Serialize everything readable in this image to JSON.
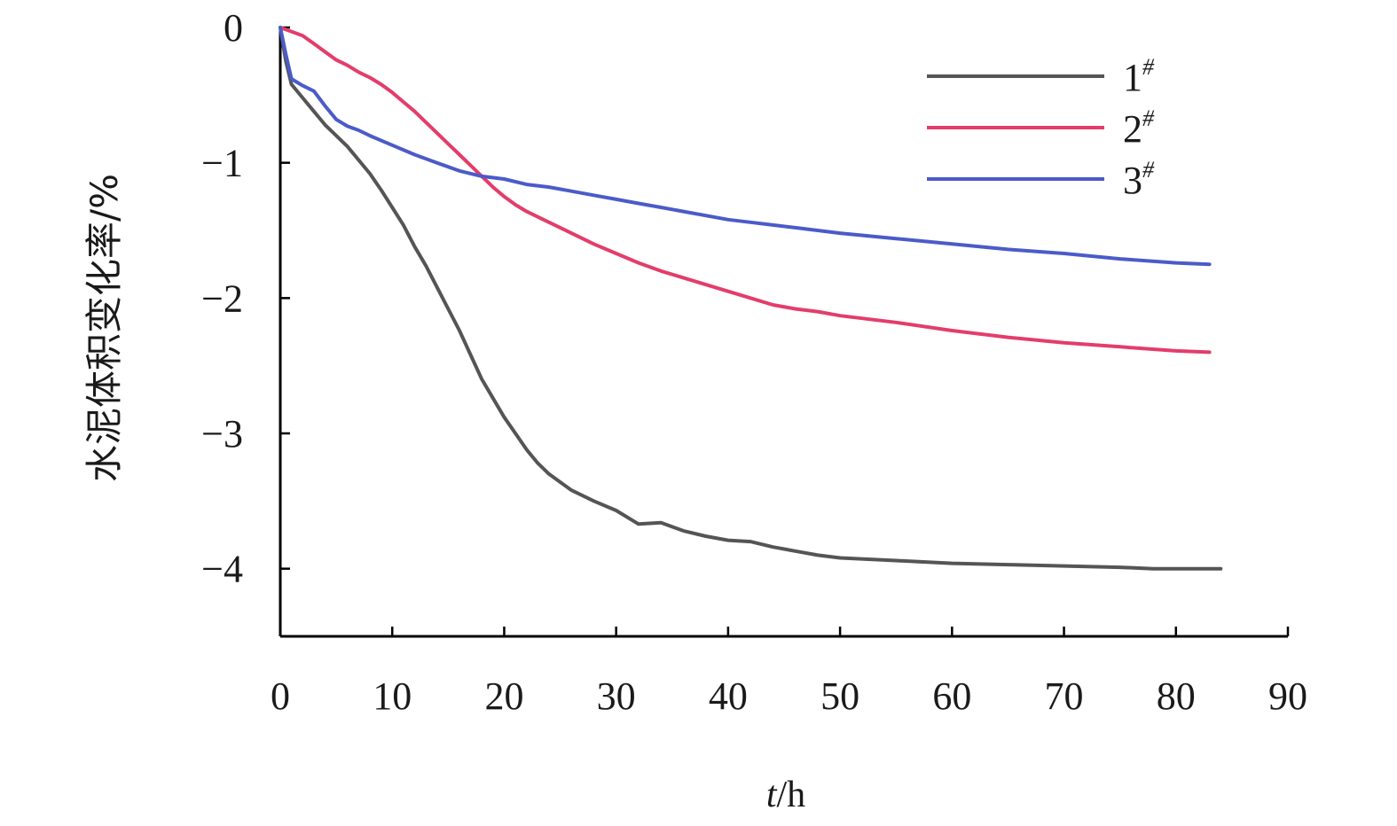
{
  "chart_data": {
    "type": "line",
    "xlabel_var": "t",
    "xlabel_unit": "/h",
    "ylabel": "水泥体积变化率/%",
    "xlim": [
      0,
      90
    ],
    "ylim": [
      -4.5,
      0
    ],
    "xticks": [
      0,
      10,
      20,
      30,
      40,
      50,
      60,
      70,
      80,
      90
    ],
    "yticks": [
      0,
      -1,
      -2,
      -3,
      -4
    ],
    "ytick_labels": [
      "0",
      "−1",
      "−2",
      "−3",
      "−4"
    ],
    "grid": false,
    "legend_position": "top-right",
    "series": [
      {
        "name": "1",
        "name_sup": "#",
        "color": "#555555",
        "x": [
          0,
          0.5,
          1,
          2,
          3,
          4,
          5,
          6,
          7,
          8,
          9,
          10,
          11,
          12,
          13,
          14,
          15,
          16,
          17,
          18,
          19,
          20,
          21,
          22,
          23,
          24,
          25,
          26,
          27,
          28,
          30,
          32,
          34,
          36,
          38,
          40,
          42,
          44,
          46,
          48,
          50,
          55,
          60,
          65,
          70,
          75,
          78,
          84
        ],
        "y": [
          0,
          -0.25,
          -0.42,
          -0.52,
          -0.62,
          -0.72,
          -0.8,
          -0.88,
          -0.98,
          -1.08,
          -1.2,
          -1.33,
          -1.46,
          -1.62,
          -1.76,
          -1.92,
          -2.08,
          -2.24,
          -2.42,
          -2.6,
          -2.74,
          -2.88,
          -3.0,
          -3.12,
          -3.22,
          -3.3,
          -3.36,
          -3.42,
          -3.46,
          -3.5,
          -3.57,
          -3.67,
          -3.66,
          -3.72,
          -3.76,
          -3.79,
          -3.8,
          -3.84,
          -3.87,
          -3.9,
          -3.92,
          -3.94,
          -3.96,
          -3.97,
          -3.98,
          -3.99,
          -4.0,
          -4.0
        ]
      },
      {
        "name": "2",
        "name_sup": "#",
        "color": "#e33d6b",
        "x": [
          0,
          1,
          2,
          3,
          4,
          5,
          6,
          7,
          8,
          9,
          10,
          11,
          12,
          13,
          14,
          15,
          16,
          17,
          18,
          19,
          20,
          21,
          22,
          23,
          24,
          25,
          26,
          28,
          30,
          32,
          34,
          36,
          38,
          40,
          42,
          44,
          46,
          48,
          50,
          55,
          60,
          65,
          70,
          75,
          80,
          83
        ],
        "y": [
          0,
          -0.03,
          -0.06,
          -0.12,
          -0.18,
          -0.24,
          -0.28,
          -0.33,
          -0.37,
          -0.42,
          -0.48,
          -0.55,
          -0.62,
          -0.7,
          -0.78,
          -0.86,
          -0.94,
          -1.02,
          -1.1,
          -1.18,
          -1.25,
          -1.31,
          -1.36,
          -1.4,
          -1.44,
          -1.48,
          -1.52,
          -1.6,
          -1.67,
          -1.74,
          -1.8,
          -1.85,
          -1.9,
          -1.95,
          -2.0,
          -2.05,
          -2.08,
          -2.1,
          -2.13,
          -2.18,
          -2.24,
          -2.29,
          -2.33,
          -2.36,
          -2.39,
          -2.4
        ]
      },
      {
        "name": "3",
        "name_sup": "#",
        "color": "#4b5bc9",
        "x": [
          0,
          0.5,
          1,
          2,
          3,
          4,
          5,
          6,
          7,
          8,
          10,
          12,
          14,
          16,
          18,
          20,
          22,
          24,
          26,
          28,
          30,
          32,
          34,
          36,
          38,
          40,
          42,
          44,
          46,
          48,
          50,
          55,
          60,
          65,
          70,
          75,
          80,
          83
        ],
        "y": [
          0,
          -0.2,
          -0.38,
          -0.43,
          -0.47,
          -0.58,
          -0.68,
          -0.73,
          -0.76,
          -0.8,
          -0.87,
          -0.94,
          -1.0,
          -1.06,
          -1.1,
          -1.12,
          -1.16,
          -1.18,
          -1.21,
          -1.24,
          -1.27,
          -1.3,
          -1.33,
          -1.36,
          -1.39,
          -1.42,
          -1.44,
          -1.46,
          -1.48,
          -1.5,
          -1.52,
          -1.56,
          -1.6,
          -1.64,
          -1.67,
          -1.71,
          -1.74,
          -1.75
        ]
      }
    ]
  }
}
